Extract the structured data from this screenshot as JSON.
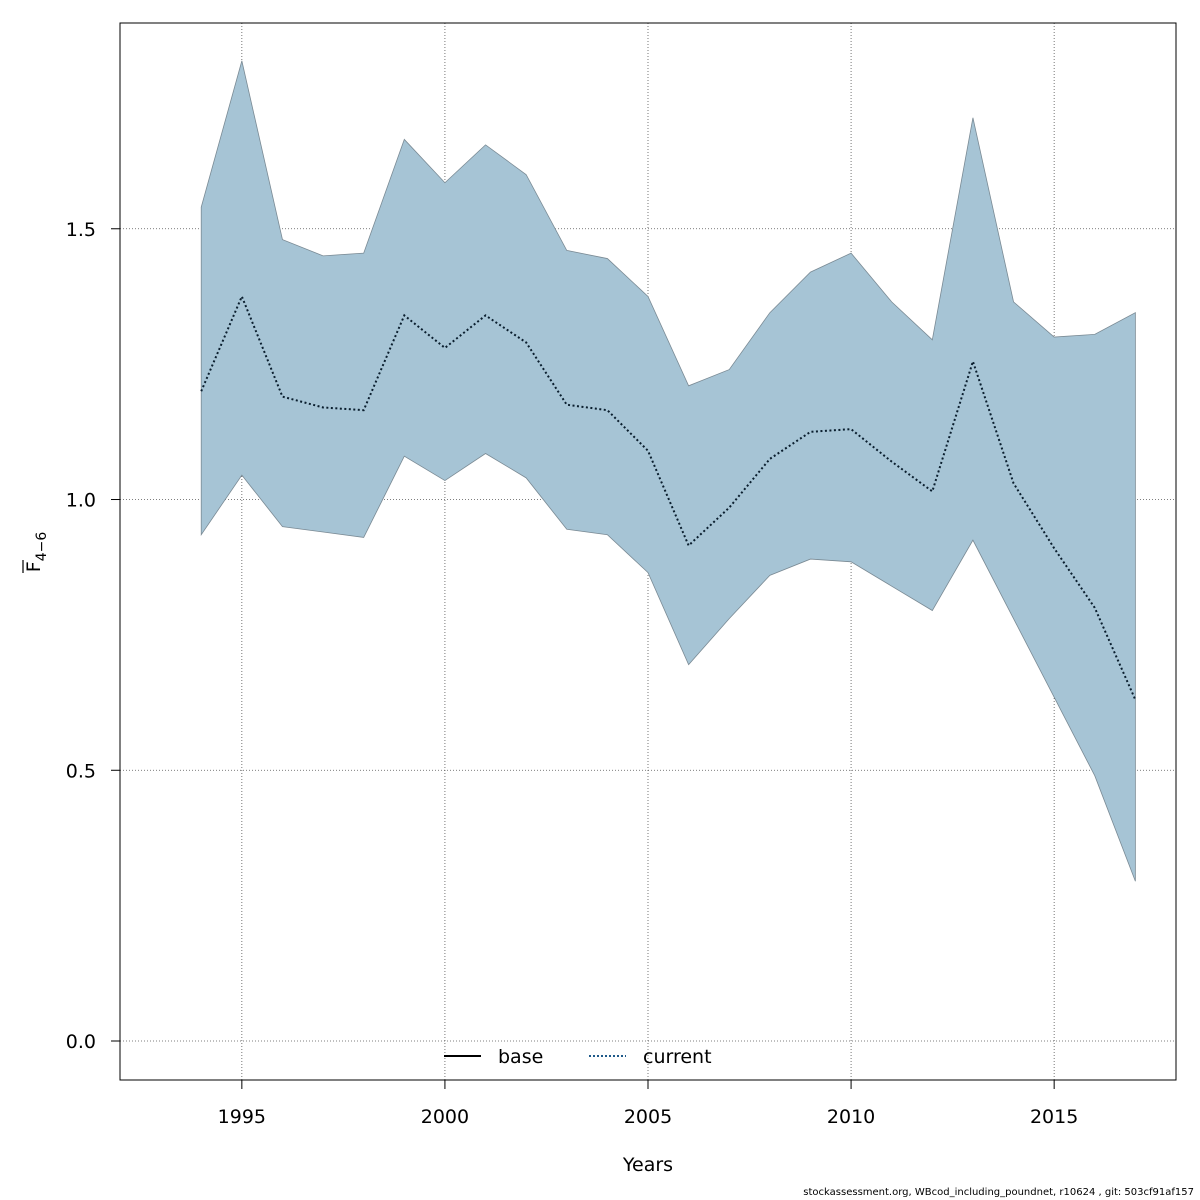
{
  "chart_data": {
    "type": "area",
    "xlabel": "Years",
    "ylabel": {
      "base": "F",
      "subscript": "4−6"
    },
    "xlim": [
      1992.0,
      2018.0
    ],
    "ylim": [
      -0.072,
      1.88
    ],
    "x_ticks": [
      1995,
      2000,
      2005,
      2010,
      2015
    ],
    "y_ticks": [
      "0.0",
      "0.5",
      "1.0",
      "1.5"
    ],
    "y_tick_values": [
      0.0,
      0.5,
      1.0,
      1.5
    ],
    "grid": true,
    "legend_position": "bottom",
    "legend": [
      {
        "label": "base",
        "style": "solid",
        "color": "#000000"
      },
      {
        "label": "current",
        "style": "dotted",
        "color": "#1f5a8a"
      }
    ],
    "colors": {
      "band_fill": "#a6c4d5",
      "band_stroke": "#7a8a94"
    },
    "x": [
      1994,
      1995,
      1996,
      1997,
      1998,
      1999,
      2000,
      2001,
      2002,
      2003,
      2004,
      2005,
      2006,
      2007,
      2008,
      2009,
      2010,
      2011,
      2012,
      2013,
      2014,
      2015,
      2016,
      2017
    ],
    "series": [
      {
        "name": "current",
        "values": [
          1.2,
          1.375,
          1.19,
          1.17,
          1.165,
          1.34,
          1.28,
          1.34,
          1.29,
          1.175,
          1.165,
          1.09,
          0.915,
          0.985,
          1.075,
          1.125,
          1.13,
          1.07,
          1.015,
          1.255,
          1.03,
          0.91,
          0.8,
          0.63
        ]
      }
    ],
    "band": {
      "upper": [
        1.54,
        1.81,
        1.48,
        1.45,
        1.455,
        1.665,
        1.585,
        1.655,
        1.6,
        1.46,
        1.445,
        1.375,
        1.21,
        1.24,
        1.345,
        1.42,
        1.455,
        1.365,
        1.295,
        1.705,
        1.365,
        1.3,
        1.305,
        1.345
      ],
      "lower": [
        0.935,
        1.045,
        0.95,
        0.94,
        0.93,
        1.08,
        1.035,
        1.085,
        1.04,
        0.945,
        0.935,
        0.865,
        0.695,
        0.78,
        0.86,
        0.89,
        0.885,
        0.84,
        0.795,
        0.925,
        0.78,
        0.635,
        0.49,
        0.295
      ]
    }
  },
  "footer_text": "stockassessment.org, WBcod_including_poundnet, r10624 , git: 503cf91af157"
}
